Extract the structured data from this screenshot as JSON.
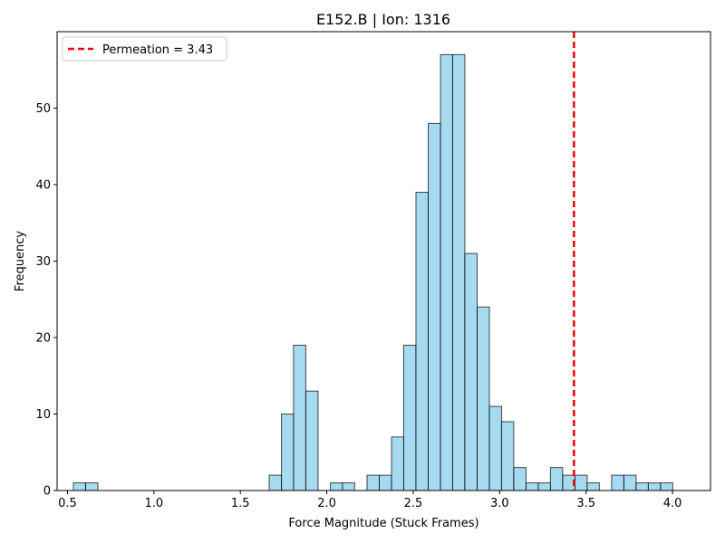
{
  "chart_data": {
    "type": "bar",
    "title": "E152.B | Ion: 1316",
    "xlabel": "Force Magnitude (Stuck Frames)",
    "ylabel": "Frequency",
    "xlim": [
      0.44,
      4.22
    ],
    "ylim": [
      0,
      60
    ],
    "xticks": [
      0.5,
      1.0,
      1.5,
      2.0,
      2.5,
      3.0,
      3.5,
      4.0
    ],
    "xtick_labels": [
      "0.5",
      "1.0",
      "1.5",
      "2.0",
      "2.5",
      "3.0",
      "3.5",
      "4.0"
    ],
    "yticks": [
      0,
      10,
      20,
      30,
      40,
      50
    ],
    "ytick_labels": [
      "0",
      "10",
      "20",
      "30",
      "40",
      "50"
    ],
    "bin_width": 0.0708,
    "bins": [
      {
        "x0": 0.534,
        "count": 1
      },
      {
        "x0": 0.605,
        "count": 1
      },
      {
        "x0": 1.667,
        "count": 2
      },
      {
        "x0": 1.738,
        "count": 10
      },
      {
        "x0": 1.808,
        "count": 19
      },
      {
        "x0": 1.879,
        "count": 13
      },
      {
        "x0": 2.021,
        "count": 1
      },
      {
        "x0": 2.091,
        "count": 1
      },
      {
        "x0": 2.233,
        "count": 2
      },
      {
        "x0": 2.304,
        "count": 2
      },
      {
        "x0": 2.375,
        "count": 7
      },
      {
        "x0": 2.445,
        "count": 19
      },
      {
        "x0": 2.516,
        "count": 39
      },
      {
        "x0": 2.587,
        "count": 48
      },
      {
        "x0": 2.658,
        "count": 57
      },
      {
        "x0": 2.728,
        "count": 57
      },
      {
        "x0": 2.799,
        "count": 31
      },
      {
        "x0": 2.87,
        "count": 24
      },
      {
        "x0": 2.941,
        "count": 11
      },
      {
        "x0": 3.011,
        "count": 9
      },
      {
        "x0": 3.082,
        "count": 3
      },
      {
        "x0": 3.153,
        "count": 1
      },
      {
        "x0": 3.224,
        "count": 1
      },
      {
        "x0": 3.294,
        "count": 3
      },
      {
        "x0": 3.365,
        "count": 2
      },
      {
        "x0": 3.436,
        "count": 2
      },
      {
        "x0": 3.506,
        "count": 1
      },
      {
        "x0": 3.648,
        "count": 2
      },
      {
        "x0": 3.719,
        "count": 2
      },
      {
        "x0": 3.79,
        "count": 1
      },
      {
        "x0": 3.86,
        "count": 1
      },
      {
        "x0": 3.931,
        "count": 1
      }
    ],
    "vline": {
      "x": 3.43,
      "label": "Permeation = 3.43",
      "color": "#ff0000"
    },
    "bar_color": "#87ceeb",
    "edge_color": "#000000",
    "grid": false,
    "legend_position": "top-left"
  }
}
